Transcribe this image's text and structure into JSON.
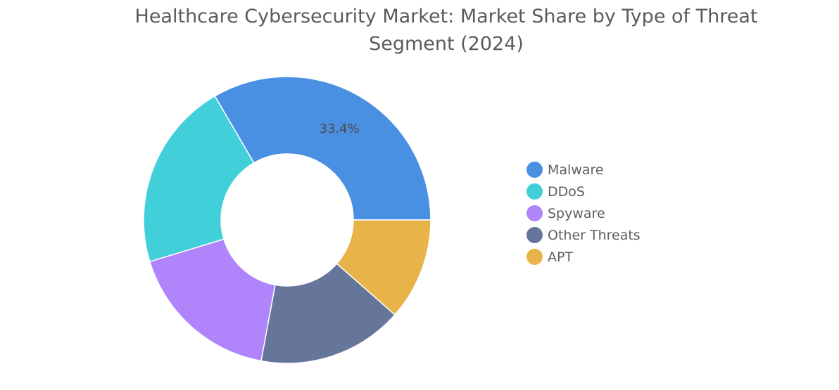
{
  "chart_data": {
    "type": "pie",
    "variant": "donut",
    "title": "Healthcare Cybersecurity Market: Market Share by Type of Threat Segment (2024)",
    "categories": [
      "Malware",
      "DDoS",
      "Spyware",
      "Other Threats",
      "APT"
    ],
    "values": [
      33.4,
      21.3,
      17.4,
      16.4,
      11.5
    ],
    "unit": "%",
    "colors": [
      "#4a90e2",
      "#41cfda",
      "#b084fa",
      "#65769a",
      "#e8b348"
    ],
    "data_labels": [
      {
        "category": "Malware",
        "text": "33.4%"
      }
    ],
    "legend_position": "right"
  }
}
